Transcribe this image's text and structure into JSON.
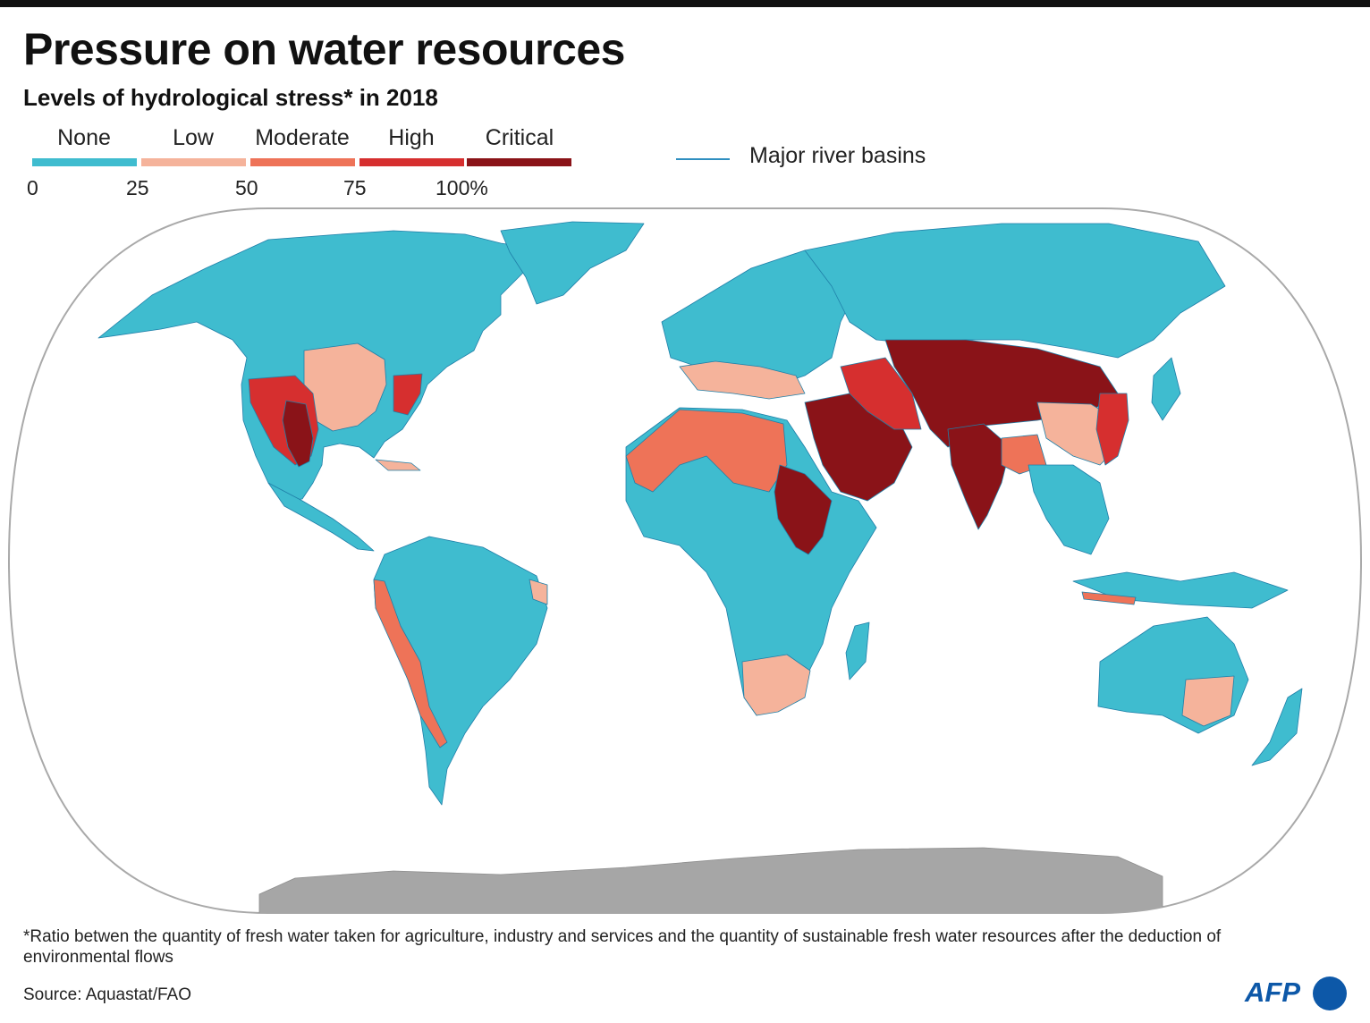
{
  "title": "Pressure on water resources",
  "subtitle": "Levels of hydrological stress* in 2018",
  "legend": {
    "categories": [
      {
        "label": "None",
        "color": "#3fbccf"
      },
      {
        "label": "Low",
        "color": "#f5b39b"
      },
      {
        "label": "Moderate",
        "color": "#ee7358"
      },
      {
        "label": "High",
        "color": "#d62f2f"
      },
      {
        "label": "Critical",
        "color": "#8a1318"
      }
    ],
    "ticks": [
      "0",
      "25",
      "50",
      "75",
      "100%"
    ],
    "river_label": "Major river basins",
    "river_color": "#2f8fc0"
  },
  "map": {
    "projection": "Natural Earth",
    "antarctica_color": "#a6a6a6",
    "border_color": "#1f7fa8",
    "regions": [
      {
        "name": "North America",
        "level": "None"
      },
      {
        "name": "US Great Plains",
        "level": "Low"
      },
      {
        "name": "US East Coast",
        "level": "High"
      },
      {
        "name": "US Southwest",
        "level": "High"
      },
      {
        "name": "Colorado basin",
        "level": "Critical"
      },
      {
        "name": "Greenland",
        "level": "None"
      },
      {
        "name": "South America",
        "level": "None"
      },
      {
        "name": "Peru-Chile coast",
        "level": "Moderate"
      },
      {
        "name": "Northern Africa",
        "level": "Moderate"
      },
      {
        "name": "Nile basin",
        "level": "Critical"
      },
      {
        "name": "Southern Africa",
        "level": "Low"
      },
      {
        "name": "Europe",
        "level": "None"
      },
      {
        "name": "Middle East",
        "level": "Critical"
      },
      {
        "name": "Central Asia",
        "level": "Critical"
      },
      {
        "name": "India",
        "level": "Critical"
      },
      {
        "name": "China",
        "level": "Low"
      },
      {
        "name": "Russia",
        "level": "None"
      },
      {
        "name": "Southeast Asia",
        "level": "None"
      },
      {
        "name": "Australia",
        "level": "None"
      },
      {
        "name": "Murray-Darling",
        "level": "Low"
      },
      {
        "name": "Antarctica",
        "level": "no data"
      }
    ]
  },
  "footnote": "*Ratio betwen the quantity of fresh water taken for agriculture, industry and services and the quantity of sustainable  fresh water resources after the deduction of environmental flows",
  "source": "Source: Aquastat/FAO",
  "logo": "AFP"
}
